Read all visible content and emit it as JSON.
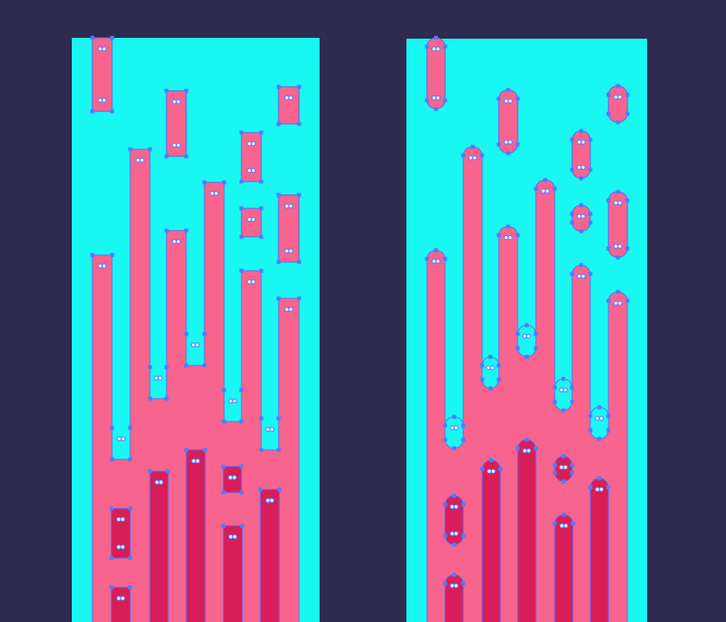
{
  "colors": {
    "background": "#2f2a50",
    "artboard": "#19f7f3",
    "shape_fill": "#f7648e",
    "shape_dark_fill": "#d81e58",
    "selection_stroke": "#5b6cf0",
    "anchor_point": "#4f7cff",
    "center_point": "#dbe4ff"
  },
  "artboards": [
    {
      "style": "square-ends"
    },
    {
      "style": "rounded-ends"
    }
  ]
}
